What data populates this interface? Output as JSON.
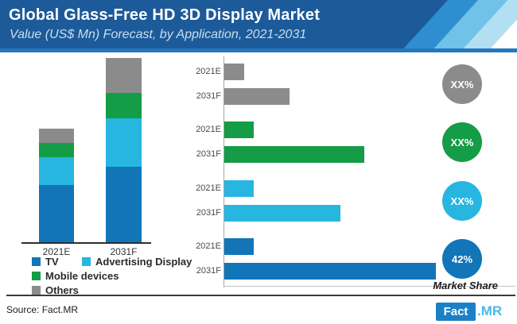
{
  "header": {
    "title": "Global Glass-Free HD 3D Display Market",
    "subtitle": "Value (US$ Mn) Forecast, by Application, 2021-2031",
    "bg_color": "#1D5A99",
    "edge_color": "#2478BE",
    "stripe_colors": [
      "#2E8ECF",
      "#71C2E8",
      "#B3DFF2",
      "#FFFFFF"
    ]
  },
  "colors": {
    "tv": "#1175B8",
    "advertising_display": "#27B6E0",
    "mobile_devices": "#149C47",
    "others": "#8B8B8B"
  },
  "chart_data": [
    {
      "type": "bar",
      "variant": "stacked-vertical",
      "categories": [
        "2021E",
        "2031F"
      ],
      "series": [
        {
          "name": "TV",
          "color": "#1175B8",
          "values": [
            73,
            96
          ]
        },
        {
          "name": "Advertising Display",
          "color": "#27B6E0",
          "values": [
            35,
            61
          ]
        },
        {
          "name": "Mobile devices",
          "color": "#149C47",
          "values": [
            18,
            32
          ]
        },
        {
          "name": "Others",
          "color": "#8B8B8B",
          "values": [
            18,
            44
          ]
        }
      ],
      "units_note": "relative bar heights; numeric value axis not shown in figure"
    },
    {
      "type": "bar",
      "variant": "grouped-horizontal",
      "row_labels": [
        "2021E",
        "2031F"
      ],
      "groups": [
        {
          "name": "Others",
          "color": "#8B8B8B",
          "values": [
            25,
            82
          ],
          "share_label": "XX%"
        },
        {
          "name": "Mobile devices",
          "color": "#149C47",
          "values": [
            37,
            176
          ],
          "share_label": "XX%"
        },
        {
          "name": "Advertising Display",
          "color": "#27B6E0",
          "values": [
            37,
            146
          ],
          "share_label": "XX%"
        },
        {
          "name": "TV",
          "color": "#1175B8",
          "values": [
            37,
            266
          ],
          "share_label": "42%"
        }
      ],
      "footer_label": "Market Share",
      "units_note": "relative bar lengths; numeric value axis not shown in figure"
    }
  ],
  "legend": {
    "items": [
      {
        "label": "TV",
        "color": "#1175B8"
      },
      {
        "label": "Advertising Display",
        "color": "#27B6E0"
      },
      {
        "label": "Mobile devices",
        "color": "#149C47"
      },
      {
        "label": "Others",
        "color": "#8B8B8B"
      }
    ]
  },
  "footer": {
    "source": "Source: Fact.MR",
    "logo_fact": "Fact",
    "logo_mr": ".MR"
  }
}
